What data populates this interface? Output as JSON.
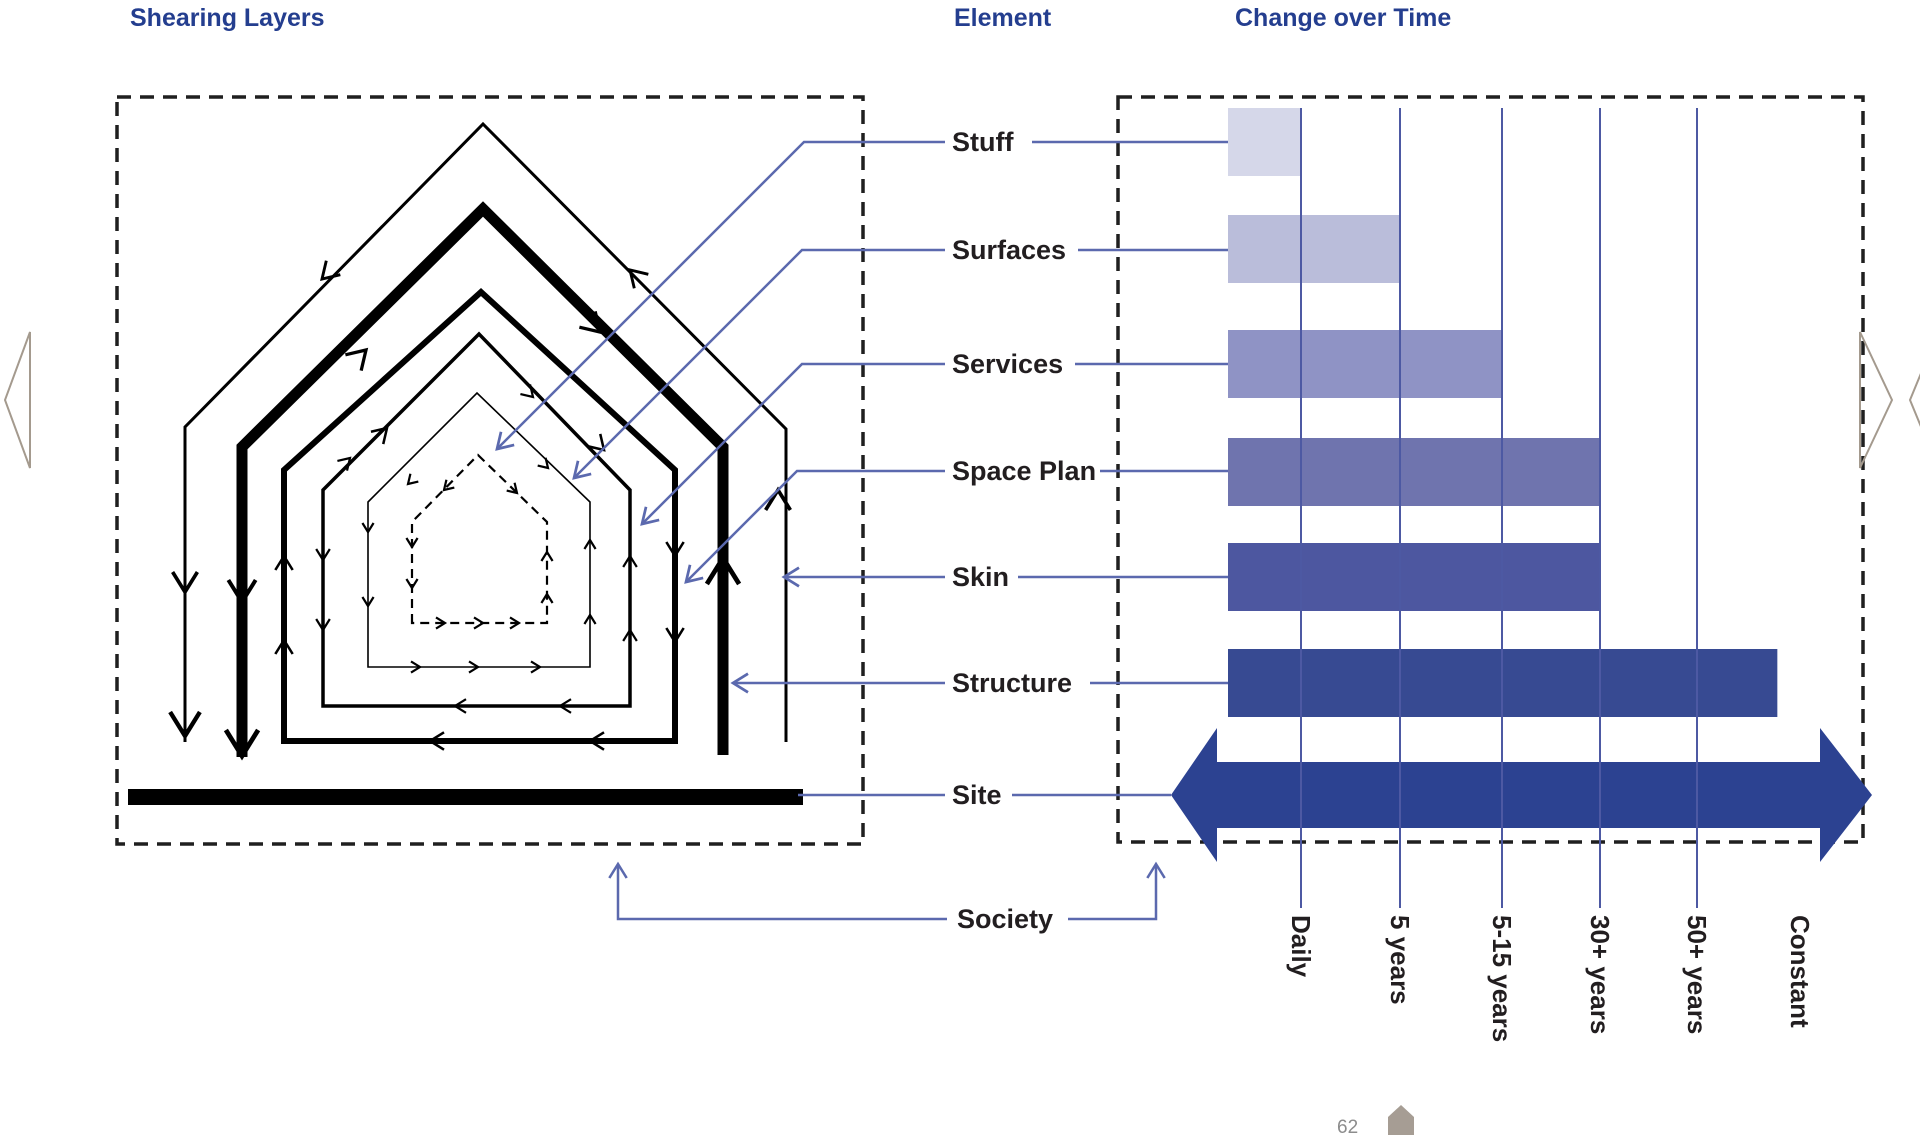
{
  "headers": {
    "left": "Shearing Layers",
    "center": "Element",
    "right": "Change over Time"
  },
  "elements": {
    "items": [
      {
        "label": "Stuff"
      },
      {
        "label": "Surfaces"
      },
      {
        "label": "Services"
      },
      {
        "label": "Space Plan"
      },
      {
        "label": "Skin"
      },
      {
        "label": "Structure"
      },
      {
        "label": "Site"
      },
      {
        "label": "Society"
      }
    ]
  },
  "shearing_diagram": {
    "title": "Shearing Layers",
    "layers_outer_to_inner": [
      "Skin",
      "Structure",
      "Space Plan",
      "Services",
      "Surfaces",
      "Stuff"
    ],
    "ground_layer": "Site",
    "context_outside_building": "Society",
    "innermost_layer_style": "dashed",
    "ground_style": "solid black bar"
  },
  "chart_data": {
    "type": "bar",
    "orientation": "horizontal",
    "title": "Change over Time",
    "x_axis": {
      "tick_labels": [
        "Daily",
        "5 years",
        "5-15 years",
        "30+ years",
        "50+ years",
        "Constant"
      ],
      "scale": "ordinal rate-of-change, rotated 90deg labels",
      "gridlines": true
    },
    "bars": [
      {
        "label": "Stuff",
        "change_rate": "Daily",
        "end_tick": 0
      },
      {
        "label": "Surfaces",
        "change_rate": "5 years",
        "end_tick": 1
      },
      {
        "label": "Services",
        "change_rate": "5-15 years",
        "end_tick": 2
      },
      {
        "label": "Space Plan",
        "change_rate": "30+ years",
        "end_tick": 3
      },
      {
        "label": "Skin",
        "change_rate": "30+ years",
        "end_tick": 3
      },
      {
        "label": "Structure",
        "change_rate": "50+ years",
        "end_tick": 4.78
      }
    ],
    "site_row": {
      "label": "Site",
      "change_rate": "Constant",
      "style": "double-headed arrow spanning full axis"
    },
    "bar_colors": [
      "#d5d7e9",
      "#babdda",
      "#8f93c5",
      "#6f74ae",
      "#4d57a0",
      "#374a92"
    ],
    "site_arrow_color": "#2c4291",
    "gridline_color": "#4d59a3"
  },
  "icons": {
    "footer": "home-icon",
    "nav_left": "chevron-left-icon",
    "nav_right": "chevron-right-icon"
  },
  "footer": {
    "page_number": "62"
  },
  "colors": {
    "header_text": "#243e8f",
    "label_text": "#221e20",
    "connector_blue": "#5b69ae",
    "diagram_ink": "#000000",
    "chevron_gray": "#a49a8e",
    "footer_icon": "#a69d94"
  }
}
